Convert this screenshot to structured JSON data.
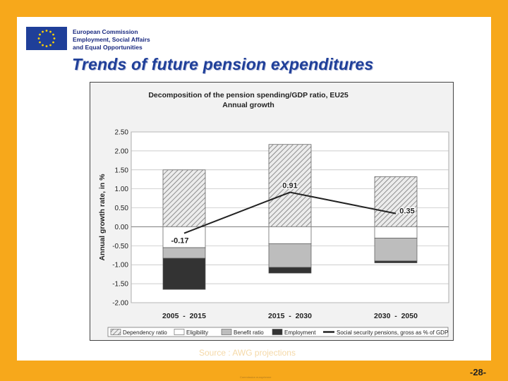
{
  "header": {
    "org_lines": [
      "European Commission",
      "Employment, Social Affairs",
      "and Equal Opportunities"
    ],
    "title": "Trends of future pension expenditures"
  },
  "footer": {
    "source": "Source : AWG projections",
    "small_text": "Commission européenne",
    "page_number": "-28-"
  },
  "colors": {
    "background": "#f7a81b",
    "title": "#1f3f99",
    "eligibility": "#ffffff",
    "benefit_ratio": "#bdbdbd",
    "employment": "#333333",
    "line": "#222222"
  },
  "chart_data": {
    "type": "bar",
    "stacked": true,
    "title": "Decomposition of the pension spending/GDP ratio, EU25",
    "subtitle": "Annual growth",
    "xlabel": "",
    "ylabel": "Annual growth rate, in %",
    "ylim": [
      -2.0,
      2.5
    ],
    "yticks": [
      "2.50",
      "2.00",
      "1.50",
      "1.00",
      "0.50",
      "0.00",
      "-0.50",
      "-1.00",
      "-1.50",
      "-2.00"
    ],
    "grid": true,
    "legend_position": "bottom",
    "categories": [
      "2005  -  2015",
      "2015  -  2030",
      "2030  -  2050"
    ],
    "series": [
      {
        "name": "Dependency ratio",
        "values": [
          1.5,
          2.17,
          1.32
        ]
      },
      {
        "name": "Eligibility",
        "values": [
          -0.55,
          -0.45,
          -0.3
        ]
      },
      {
        "name": "Benefit ratio",
        "values": [
          -0.28,
          -0.62,
          -0.6
        ]
      },
      {
        "name": "Employment",
        "values": [
          -0.82,
          -0.15,
          -0.05
        ]
      },
      {
        "name": "Social security pensions, gross as % of GDP",
        "type": "line",
        "values": [
          -0.17,
          0.91,
          0.35
        ]
      }
    ],
    "data_labels": [
      "-0.17",
      "0.91",
      "0.35"
    ]
  }
}
